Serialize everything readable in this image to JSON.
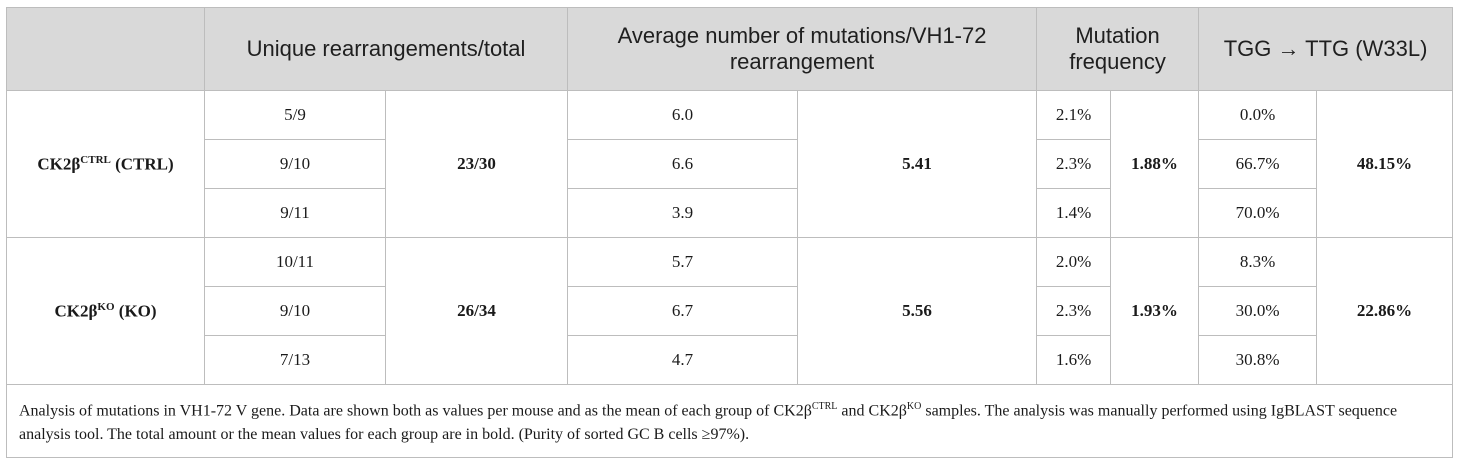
{
  "headers": {
    "col0": "",
    "unique": "Unique rearrangements/total",
    "avg": "Average number of mutations/VH1-72 rearrangement",
    "freq": "Mutation frequency",
    "tgg": "TGG → TTG (W33L)"
  },
  "groups": [
    {
      "label_main": "CK2β",
      "label_sup": "CTRL",
      "label_suffix": " (CTRL)",
      "rows": [
        {
          "unique": "5/9",
          "avg": "6.0",
          "freq": "2.1%",
          "tgg": "0.0%"
        },
        {
          "unique": "9/10",
          "avg": "6.6",
          "freq": "2.3%",
          "tgg": "66.7%"
        },
        {
          "unique": "9/11",
          "avg": "3.9",
          "freq": "1.4%",
          "tgg": "70.0%"
        }
      ],
      "totals": {
        "unique": "23/30",
        "avg": "5.41",
        "freq": "1.88%",
        "tgg": "48.15%"
      }
    },
    {
      "label_main": "CK2β",
      "label_sup": "KO",
      "label_suffix": " (KO)",
      "rows": [
        {
          "unique": "10/11",
          "avg": "5.7",
          "freq": "2.0%",
          "tgg": "8.3%"
        },
        {
          "unique": "9/10",
          "avg": "6.7",
          "freq": "2.3%",
          "tgg": "30.0%"
        },
        {
          "unique": "7/13",
          "avg": "4.7",
          "freq": "1.6%",
          "tgg": "30.8%"
        }
      ],
      "totals": {
        "unique": "26/34",
        "avg": "5.56",
        "freq": "1.93%",
        "tgg": "22.86%"
      }
    }
  ],
  "footnote": {
    "part1": "Analysis of mutations in VH1-72 V gene. Data are shown both as values per mouse and as the mean of each group of CK2β",
    "sup1": "CTRL",
    "part2": " and CK2β",
    "sup2": "KO",
    "part3": " samples. The analysis was manually performed using IgBLAST sequence analysis tool. The total amount or the mean values for each group are in bold. (Purity of sorted GC B cells ≥97%)."
  }
}
